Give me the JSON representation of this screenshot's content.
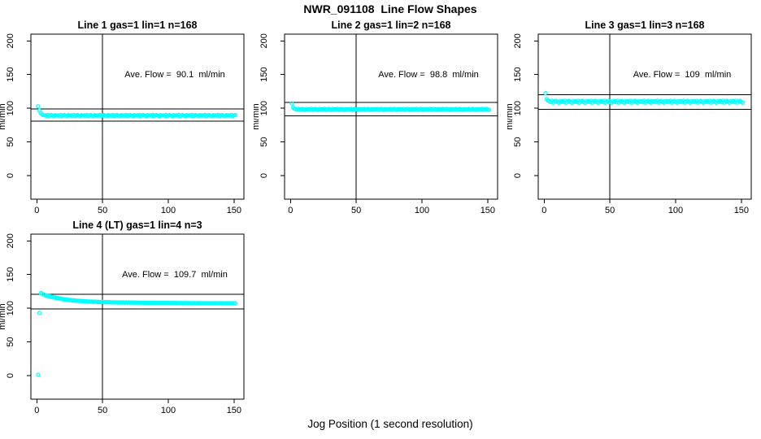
{
  "chart_data": {
    "type": "scatter",
    "title": "NWR_091108  Line Flow Shapes",
    "xlabel": "Jog Position (1 second resolution)",
    "layout": "2-rows-3-cols, panels at r1c1 r1c2 r1c3 r2c1, other cells empty",
    "background_color": "#FFFFFF",
    "axis_color": "#000000",
    "marker": "open-circle",
    "marker_color": "#00FFFF",
    "grid": false,
    "x_ticks": [
      0,
      50,
      100,
      150
    ],
    "y_ticks": [
      0,
      50,
      100,
      150,
      200
    ],
    "xlim": [
      -4.5,
      157.5
    ],
    "ylim": [
      -35,
      210
    ],
    "panels": [
      {
        "title": "Line 1 gas=1 lin=1 n=168",
        "ylabel": "ml/min",
        "annotation": "Ave. Flow =  90.1  ml/min",
        "ave_flow_ml_min": 90.1,
        "vline_x": 50,
        "hlines": [
          99.1,
          81.1
        ],
        "x_start": 1,
        "x_step": 1,
        "y": [
          103.0,
          96.5,
          92.8,
          90.9,
          89.9,
          89.6,
          88.9,
          90.1,
          88.6,
          89.4,
          89.9,
          89.1,
          88.5,
          89.8,
          89.2,
          89.6,
          88.9,
          90.1,
          88.6,
          89.4,
          89.9,
          89.1,
          88.5,
          89.8,
          89.2,
          89.6,
          88.9,
          90.1,
          88.6,
          89.4,
          89.9,
          89.1,
          88.5,
          89.8,
          89.2,
          89.6,
          88.9,
          90.1,
          88.6,
          89.4,
          89.9,
          89.1,
          88.5,
          89.8,
          89.2,
          89.6,
          88.9,
          90.1,
          88.6,
          89.4,
          89.9,
          89.1,
          88.5,
          89.8,
          89.2,
          89.6,
          88.9,
          90.1,
          88.6,
          89.4,
          89.9,
          89.1,
          88.5,
          89.8,
          89.2,
          89.6,
          88.9,
          90.1,
          88.6,
          89.4,
          89.9,
          89.1,
          88.5,
          89.8,
          89.2,
          89.6,
          88.9,
          90.1,
          88.6,
          89.4,
          89.9,
          89.1,
          88.5,
          89.8,
          89.2,
          89.6,
          88.9,
          90.1,
          88.6,
          89.4,
          89.9,
          89.1,
          88.5,
          89.8,
          89.2,
          89.6,
          88.9,
          90.1,
          88.6,
          89.4,
          89.9,
          89.1,
          88.5,
          89.8,
          89.2,
          89.6,
          88.9,
          90.1,
          88.6,
          89.4,
          89.9,
          89.1,
          88.5,
          89.8,
          89.2,
          89.6,
          88.9,
          90.1,
          88.6,
          89.4,
          89.9,
          89.1,
          88.5,
          89.8,
          89.2,
          89.6,
          88.9,
          90.1,
          88.6,
          89.4,
          89.9,
          89.1,
          88.5,
          89.8,
          89.2,
          89.6,
          88.9,
          90.1,
          88.6,
          89.4,
          89.9,
          89.1,
          88.5,
          89.8,
          89.2,
          89.6,
          88.9,
          90.1,
          88.6,
          89.4,
          89.9
        ]
      },
      {
        "title": "Line 2 gas=1 lin=2 n=168",
        "ylabel": "ml/min",
        "annotation": "Ave. Flow =  98.8  ml/min",
        "ave_flow_ml_min": 98.8,
        "vline_x": 50,
        "hlines": [
          108.7,
          88.9
        ],
        "x_start": 1,
        "x_step": 1,
        "y": [
          107.3,
          101.2,
          99.3,
          98.7,
          98.0,
          99.2,
          97.7,
          98.5,
          99.0,
          98.2,
          97.6,
          98.9,
          98.3,
          98.7,
          98.0,
          99.2,
          97.7,
          98.5,
          99.0,
          98.2,
          97.6,
          98.9,
          98.3,
          98.7,
          98.0,
          99.2,
          97.7,
          98.5,
          99.0,
          98.2,
          97.6,
          98.9,
          98.3,
          98.7,
          98.0,
          99.2,
          97.7,
          98.5,
          99.0,
          98.2,
          97.6,
          98.9,
          98.3,
          98.7,
          98.0,
          99.2,
          97.7,
          98.5,
          99.0,
          98.2,
          97.6,
          98.9,
          98.3,
          98.7,
          98.0,
          99.2,
          97.7,
          98.5,
          99.0,
          98.2,
          97.6,
          98.9,
          98.3,
          98.7,
          98.0,
          99.2,
          97.7,
          98.5,
          99.0,
          98.2,
          97.6,
          98.9,
          98.3,
          98.7,
          98.0,
          99.2,
          97.7,
          98.5,
          99.0,
          98.2,
          97.6,
          98.9,
          98.3,
          98.7,
          98.0,
          99.2,
          97.7,
          98.5,
          99.0,
          98.2,
          97.6,
          98.9,
          98.3,
          98.7,
          98.0,
          99.2,
          97.7,
          98.5,
          99.0,
          98.2,
          97.6,
          98.9,
          98.3,
          98.7,
          98.0,
          99.2,
          97.7,
          98.5,
          99.0,
          98.2,
          97.6,
          98.9,
          98.3,
          98.7,
          98.0,
          99.2,
          97.7,
          98.5,
          99.0,
          98.2,
          97.6,
          98.9,
          98.3,
          98.7,
          98.0,
          99.2,
          97.7,
          98.5,
          99.0,
          98.2,
          97.6,
          98.9,
          98.3,
          98.7,
          98.0,
          99.2,
          97.7,
          98.5,
          99.0,
          98.2,
          97.6,
          98.9,
          98.3,
          98.7,
          98.0,
          99.2,
          97.7,
          98.5,
          99.0,
          98.2,
          97.6
        ]
      },
      {
        "title": "Line 3 gas=1 lin=3 n=168",
        "ylabel": "ml/min",
        "annotation": "Ave. Flow =  109  ml/min",
        "ave_flow_ml_min": 109,
        "vline_x": 50,
        "hlines": [
          119.9,
          98.1
        ],
        "x_start": 1,
        "x_step": 1,
        "y": [
          122.4,
          113.6,
          111.1,
          110.5,
          108.9,
          111.2,
          108.5,
          110.2,
          111.0,
          109.3,
          108.3,
          110.8,
          109.5,
          110.5,
          108.9,
          111.2,
          108.5,
          110.2,
          111.0,
          109.3,
          108.3,
          110.8,
          109.5,
          110.5,
          108.9,
          111.2,
          108.5,
          110.2,
          111.0,
          109.3,
          108.3,
          110.8,
          109.5,
          110.5,
          108.9,
          111.2,
          108.5,
          110.2,
          111.0,
          109.3,
          108.3,
          110.8,
          109.5,
          110.5,
          108.9,
          111.2,
          108.5,
          110.2,
          111.0,
          109.3,
          108.3,
          110.8,
          109.5,
          110.5,
          108.9,
          111.2,
          108.5,
          110.2,
          111.0,
          109.3,
          108.3,
          110.8,
          109.5,
          110.5,
          108.9,
          111.2,
          108.5,
          110.2,
          111.0,
          109.3,
          108.3,
          110.8,
          109.5,
          110.5,
          108.9,
          111.2,
          108.5,
          110.2,
          111.0,
          109.3,
          108.3,
          110.8,
          109.5,
          110.5,
          108.9,
          111.2,
          108.5,
          110.2,
          111.0,
          109.3,
          108.3,
          110.8,
          109.5,
          110.5,
          108.9,
          111.2,
          108.5,
          110.2,
          111.0,
          109.3,
          108.3,
          110.8,
          109.5,
          110.5,
          108.9,
          111.2,
          108.5,
          110.2,
          111.0,
          109.3,
          108.3,
          110.8,
          109.5,
          110.5,
          108.9,
          111.2,
          108.5,
          110.2,
          111.0,
          109.3,
          108.3,
          110.8,
          109.5,
          110.5,
          108.9,
          111.2,
          108.5,
          110.2,
          111.0,
          109.3,
          108.3,
          110.8,
          109.5,
          110.5,
          108.9,
          111.2,
          108.5,
          110.2,
          111.0,
          109.3,
          108.3,
          110.8,
          109.5,
          110.5,
          108.9,
          111.2,
          108.5,
          110.2,
          111.0,
          109.3,
          108.3
        ]
      },
      {
        "title": "Line 4 (LT) gas=1 lin=4 n=3",
        "ylabel": "ml/min",
        "annotation": "Ave. Flow =  109.7  ml/min",
        "ave_flow_ml_min": 109.7,
        "vline_x": 50,
        "hlines": [
          120.7,
          98.7
        ],
        "x_start": 1,
        "x_step": 1,
        "y": [
          1.2,
          93.0,
          122.5,
          121.6,
          120.4,
          119.9,
          118.6,
          118.9,
          117.4,
          117.8,
          116.6,
          116.9,
          115.8,
          116.2,
          114.9,
          115.3,
          114.2,
          114.6,
          113.5,
          113.9,
          112.9,
          113.3,
          112.4,
          112.8,
          111.9,
          112.3,
          111.5,
          111.9,
          111.1,
          111.5,
          110.8,
          111.2,
          110.5,
          110.9,
          110.2,
          110.6,
          110.0,
          110.4,
          109.8,
          110.2,
          109.6,
          110.0,
          109.4,
          109.8,
          109.3,
          109.7,
          109.1,
          109.5,
          109.0,
          109.4,
          108.9,
          109.3,
          108.8,
          109.2,
          108.7,
          109.1,
          108.6,
          109.0,
          108.5,
          108.9,
          108.5,
          108.9,
          108.4,
          108.8,
          108.4,
          108.8,
          108.3,
          108.7,
          108.3,
          108.7,
          108.2,
          108.6,
          108.2,
          108.6,
          108.1,
          108.5,
          108.1,
          108.5,
          108.0,
          108.4,
          108.0,
          108.4,
          107.9,
          108.3,
          107.9,
          108.3,
          107.8,
          108.2,
          107.8,
          108.2,
          107.8,
          108.2,
          107.7,
          108.1,
          107.7,
          108.1,
          107.7,
          108.1,
          107.6,
          108.0,
          107.6,
          108.0,
          107.6,
          108.0,
          107.6,
          108.0,
          107.5,
          107.9,
          107.5,
          107.9,
          107.5,
          107.9,
          107.5,
          107.9,
          107.4,
          107.8,
          107.4,
          107.8,
          107.4,
          107.8,
          107.4,
          107.8,
          107.4,
          107.8,
          107.3,
          107.7,
          107.3,
          107.7,
          107.3,
          107.7,
          107.3,
          107.7,
          107.3,
          107.7,
          107.3,
          107.7,
          107.3,
          107.7,
          107.3,
          107.7,
          107.3,
          107.7,
          107.3,
          107.7,
          107.3,
          107.7,
          107.3,
          107.7,
          107.3,
          107.7,
          107.3
        ]
      }
    ]
  }
}
